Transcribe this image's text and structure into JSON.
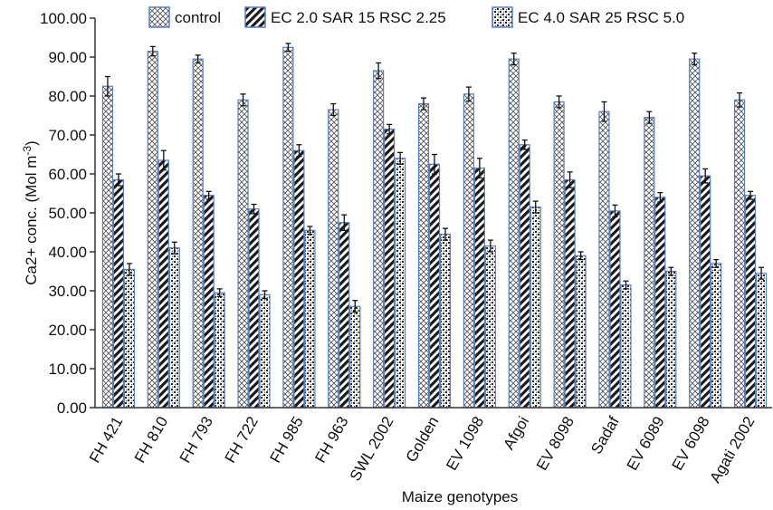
{
  "chart_data": {
    "type": "bar",
    "title": "",
    "xlabel": "Maize genotypes",
    "ylabel": "Ca2+ conc. (Mol m",
    "ylabel_sup": "-3",
    "ylabel_close": ")",
    "ylim": [
      0,
      100
    ],
    "ytick_step": 10,
    "ytick_labels": [
      "0.00",
      "10.00",
      "20.00",
      "30.00",
      "40.00",
      "50.00",
      "60.00",
      "70.00",
      "80.00",
      "90.00",
      "100.00"
    ],
    "grid": false,
    "legend_position": "top",
    "categories": [
      "FH 421",
      "FH 810",
      "FH 793",
      "FH 722",
      "FH 985",
      "FH 963",
      "SWL 2002",
      "Golden",
      "EV 1098",
      "Afgoi",
      "EV 8098",
      "Sadaf",
      "EV 6089",
      "EV 6098",
      "Agati 2002"
    ],
    "series": [
      {
        "name": "control",
        "pattern": "crosshatch",
        "values": [
          82.5,
          91.5,
          89.5,
          79.0,
          92.5,
          76.5,
          86.5,
          78.0,
          80.5,
          89.5,
          78.5,
          76.0,
          74.5,
          89.5,
          79.0
        ],
        "errors": [
          2.5,
          1.2,
          1.0,
          1.5,
          1.0,
          1.5,
          2.0,
          1.5,
          1.8,
          1.5,
          1.5,
          2.5,
          1.5,
          1.5,
          1.8
        ]
      },
      {
        "name": "EC 2.0 SAR 15 RSC 2.25",
        "pattern": "diagonal",
        "values": [
          58.5,
          63.5,
          54.5,
          51.0,
          66.0,
          47.5,
          71.5,
          62.5,
          61.5,
          67.5,
          58.5,
          50.5,
          54.0,
          59.5,
          54.5
        ],
        "errors": [
          1.5,
          2.5,
          1.0,
          1.2,
          1.5,
          2.0,
          1.2,
          2.5,
          2.5,
          1.2,
          2.0,
          1.5,
          1.2,
          1.8,
          1.0
        ]
      },
      {
        "name": "EC 4.0 SAR 25 RSC 5.0",
        "pattern": "dots",
        "values": [
          35.5,
          41.0,
          29.5,
          29.0,
          45.5,
          26.0,
          64.0,
          44.5,
          41.5,
          51.5,
          39.0,
          31.5,
          35.0,
          37.0,
          34.5
        ],
        "errors": [
          1.5,
          1.5,
          1.0,
          1.0,
          1.0,
          1.5,
          1.5,
          1.5,
          1.5,
          1.5,
          1.0,
          1.0,
          1.0,
          1.0,
          1.5
        ]
      }
    ]
  }
}
